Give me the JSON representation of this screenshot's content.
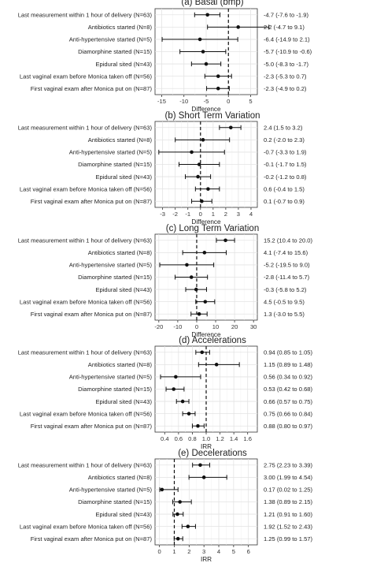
{
  "chart_data": [
    {
      "type": "forest",
      "title": "(a) Basal (bmp)",
      "xlabel": "Difference",
      "xlim": [
        -16.5,
        6.5
      ],
      "xticks": [
        -15,
        -10,
        -5,
        0,
        5
      ],
      "ref": 0,
      "categories": [
        "Last measurement within 1 hour of delivery (N=63)",
        "Antibiotics started (N=8)",
        "Anti-hypertensive started (N=5)",
        "Diamorphine started (N=15)",
        "Epidural sited (N=43)",
        "Last vaginal exam before Monica taken off (N=56)",
        "First vaginal exam after Monica put on (N=87)"
      ],
      "estimates": [
        -4.7,
        2.2,
        -6.4,
        -5.7,
        -5.0,
        -2.3,
        -2.3
      ],
      "lower": [
        -7.6,
        -4.7,
        -14.9,
        -10.9,
        -8.3,
        -5.3,
        -4.9
      ],
      "upper": [
        -1.9,
        9.1,
        2.1,
        -0.6,
        -1.7,
        0.7,
        0.2
      ],
      "labels": [
        "-4.7 (-7.6 to -1.9)",
        "2.2 (-4.7 to 9.1)",
        "-6.4 (-14.9 to 2.1)",
        "-5.7 (-10.9 to -0.6)",
        "-5.0 (-8.3 to -1.7)",
        "-2.3 (-5.3 to 0.7)",
        "-2.3 (-4.9 to 0.2)"
      ]
    },
    {
      "type": "forest",
      "title": "(b) Short Term Variation",
      "xlabel": "Difference",
      "xlim": [
        -3.6,
        4.5
      ],
      "xticks": [
        -3,
        -2,
        -1,
        0,
        1,
        2,
        3,
        4
      ],
      "ref": 0,
      "categories": [
        "Last measurement within 1 hour of delivery (N=63)",
        "Antibiotics started (N=8)",
        "Anti-hypertensive started (N=5)",
        "Diamorphine started (N=15)",
        "Epidural sited (N=43)",
        "Last vaginal exam before Monica taken off (N=56)",
        "First vaginal exam after Monica put on (N=87)"
      ],
      "estimates": [
        2.4,
        0.2,
        -0.7,
        -0.1,
        -0.2,
        0.6,
        0.1
      ],
      "lower": [
        1.5,
        -2.0,
        -3.3,
        -1.7,
        -1.2,
        -0.4,
        -0.7
      ],
      "upper": [
        3.2,
        2.3,
        1.9,
        1.5,
        0.8,
        1.5,
        0.9
      ],
      "labels": [
        "2.4 (1.5 to 3.2)",
        "0.2 (-2.0 to 2.3)",
        "-0.7 (-3.3 to 1.9)",
        "-0.1 (-1.7 to 1.5)",
        "-0.2 (-1.2 to 0.8)",
        "0.6 (-0.4 to 1.5)",
        "0.1 (-0.7 to 0.9)"
      ]
    },
    {
      "type": "forest",
      "title": "(c) Long Term Variation",
      "xlabel": "Difference",
      "xlim": [
        -22,
        32
      ],
      "xticks": [
        -20,
        -10,
        0,
        10,
        20,
        30
      ],
      "ref": 0,
      "categories": [
        "Last measurement within 1 hour of delivery (N=63)",
        "Antibiotics started (N=8)",
        "Anti-hypertensive started (N=5)",
        "Diamorphine started (N=15)",
        "Epidural sited (N=43)",
        "Last vaginal exam before Monica taken off (N=56)",
        "First vaginal exam after Monica put on (N=87)"
      ],
      "estimates": [
        15.2,
        4.1,
        -5.2,
        -2.8,
        -0.3,
        4.5,
        1.3
      ],
      "lower": [
        10.4,
        -7.4,
        -19.5,
        -11.4,
        -5.8,
        -0.5,
        -3.0
      ],
      "upper": [
        20.0,
        15.6,
        9.0,
        5.7,
        5.2,
        9.5,
        5.5
      ],
      "labels": [
        "15.2 (10.4 to 20.0)",
        "4.1 (-7.4 to 15.6)",
        "-5.2 (-19.5 to 9.0)",
        "-2.8 (-11.4 to 5.7)",
        "-0.3 (-5.8 to 5.2)",
        "4.5 (-0.5 to 9.5)",
        "1.3 (-3.0 to 5.5)"
      ]
    },
    {
      "type": "forest",
      "title": "(d) Accelerations",
      "xlabel": "IRR",
      "xlim": [
        0.26,
        1.74
      ],
      "xticks": [
        0.4,
        0.6,
        0.8,
        1.0,
        1.2,
        1.4,
        1.6
      ],
      "xticklabels": [
        "0.4",
        "0.6",
        "0.8",
        "1.0",
        "1.2",
        "1.4",
        "1.6"
      ],
      "ref": 1,
      "categories": [
        "Last measurement within 1 hour of delivery (N=63)",
        "Antibiotics started (N=8)",
        "Anti-hypertensive started (N=5)",
        "Diamorphine started (N=15)",
        "Epidural sited (N=43)",
        "Last vaginal exam before Monica taken off (N=56)",
        "First vaginal exam after Monica put on (N=87)"
      ],
      "estimates": [
        0.94,
        1.15,
        0.56,
        0.53,
        0.66,
        0.75,
        0.88
      ],
      "lower": [
        0.85,
        0.89,
        0.34,
        0.42,
        0.57,
        0.66,
        0.8
      ],
      "upper": [
        1.05,
        1.48,
        0.92,
        0.68,
        0.75,
        0.84,
        0.97
      ],
      "labels": [
        "0.94 (0.85 to 1.05)",
        "1.15 (0.89 to 1.48)",
        "0.56 (0.34 to 0.92)",
        "0.53 (0.42 to 0.68)",
        "0.66 (0.57 to 0.75)",
        "0.75 (0.66 to 0.84)",
        "0.88 (0.80 to 0.97)"
      ]
    },
    {
      "type": "forest",
      "title": "(e) Decelerations",
      "xlabel": "IRR",
      "xlim": [
        -0.3,
        6.6
      ],
      "xticks": [
        0,
        1,
        2,
        3,
        4,
        5,
        6
      ],
      "ref": 1,
      "categories": [
        "Last measurement within 1 hour of delivery (N=63)",
        "Antibiotics started (N=8)",
        "Anti-hypertensive started (N=5)",
        "Diamorphine started (N=15)",
        "Epidural sited (N=43)",
        "Last vaginal exam before Monica taken off (N=56)",
        "First vaginal exam after Monica put on (N=87)"
      ],
      "estimates": [
        2.75,
        3.0,
        0.17,
        1.38,
        1.21,
        1.92,
        1.25
      ],
      "lower": [
        2.23,
        1.99,
        0.02,
        0.89,
        0.91,
        1.52,
        0.99
      ],
      "upper": [
        3.39,
        4.54,
        1.25,
        2.15,
        1.6,
        2.43,
        1.57
      ],
      "labels": [
        "2.75 (2.23 to 3.39)",
        "3.00 (1.99 to 4.54)",
        "0.17 (0.02 to 1.25)",
        "1.38 (0.89 to 2.15)",
        "1.21 (0.91 to 1.60)",
        "1.92 (1.52 to 2.43)",
        "1.25 (0.99 to 1.57)"
      ]
    }
  ]
}
